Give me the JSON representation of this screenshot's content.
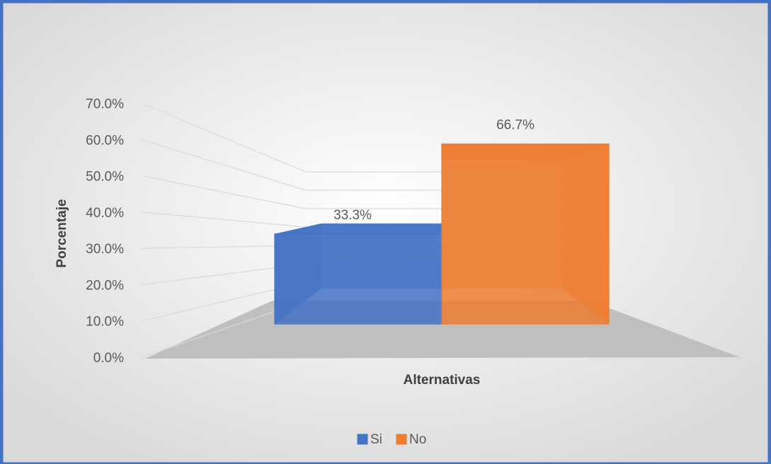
{
  "chart_data": {
    "type": "bar",
    "x_label": "Alternativas",
    "y_label": "Porcentaje",
    "series": [
      {
        "name": "Si",
        "color": "#4472c4",
        "values": [
          33.3
        ],
        "value_labels": [
          "33.3%"
        ]
      },
      {
        "name": "No",
        "color": "#ed7d31",
        "values": [
          66.7
        ],
        "value_labels": [
          "66.7%"
        ]
      }
    ],
    "ylim": [
      0,
      70
    ],
    "yticks": [
      {
        "value": 0,
        "label": "0.0%"
      },
      {
        "value": 10,
        "label": "10.0%"
      },
      {
        "value": 20,
        "label": "20.0%"
      },
      {
        "value": 30,
        "label": "30.0%"
      },
      {
        "value": 40,
        "label": "40.0%"
      },
      {
        "value": 50,
        "label": "50.0%"
      },
      {
        "value": 60,
        "label": "60.0%"
      },
      {
        "value": 70,
        "label": "70.0%"
      }
    ],
    "grid": true,
    "legend": "bottom"
  }
}
